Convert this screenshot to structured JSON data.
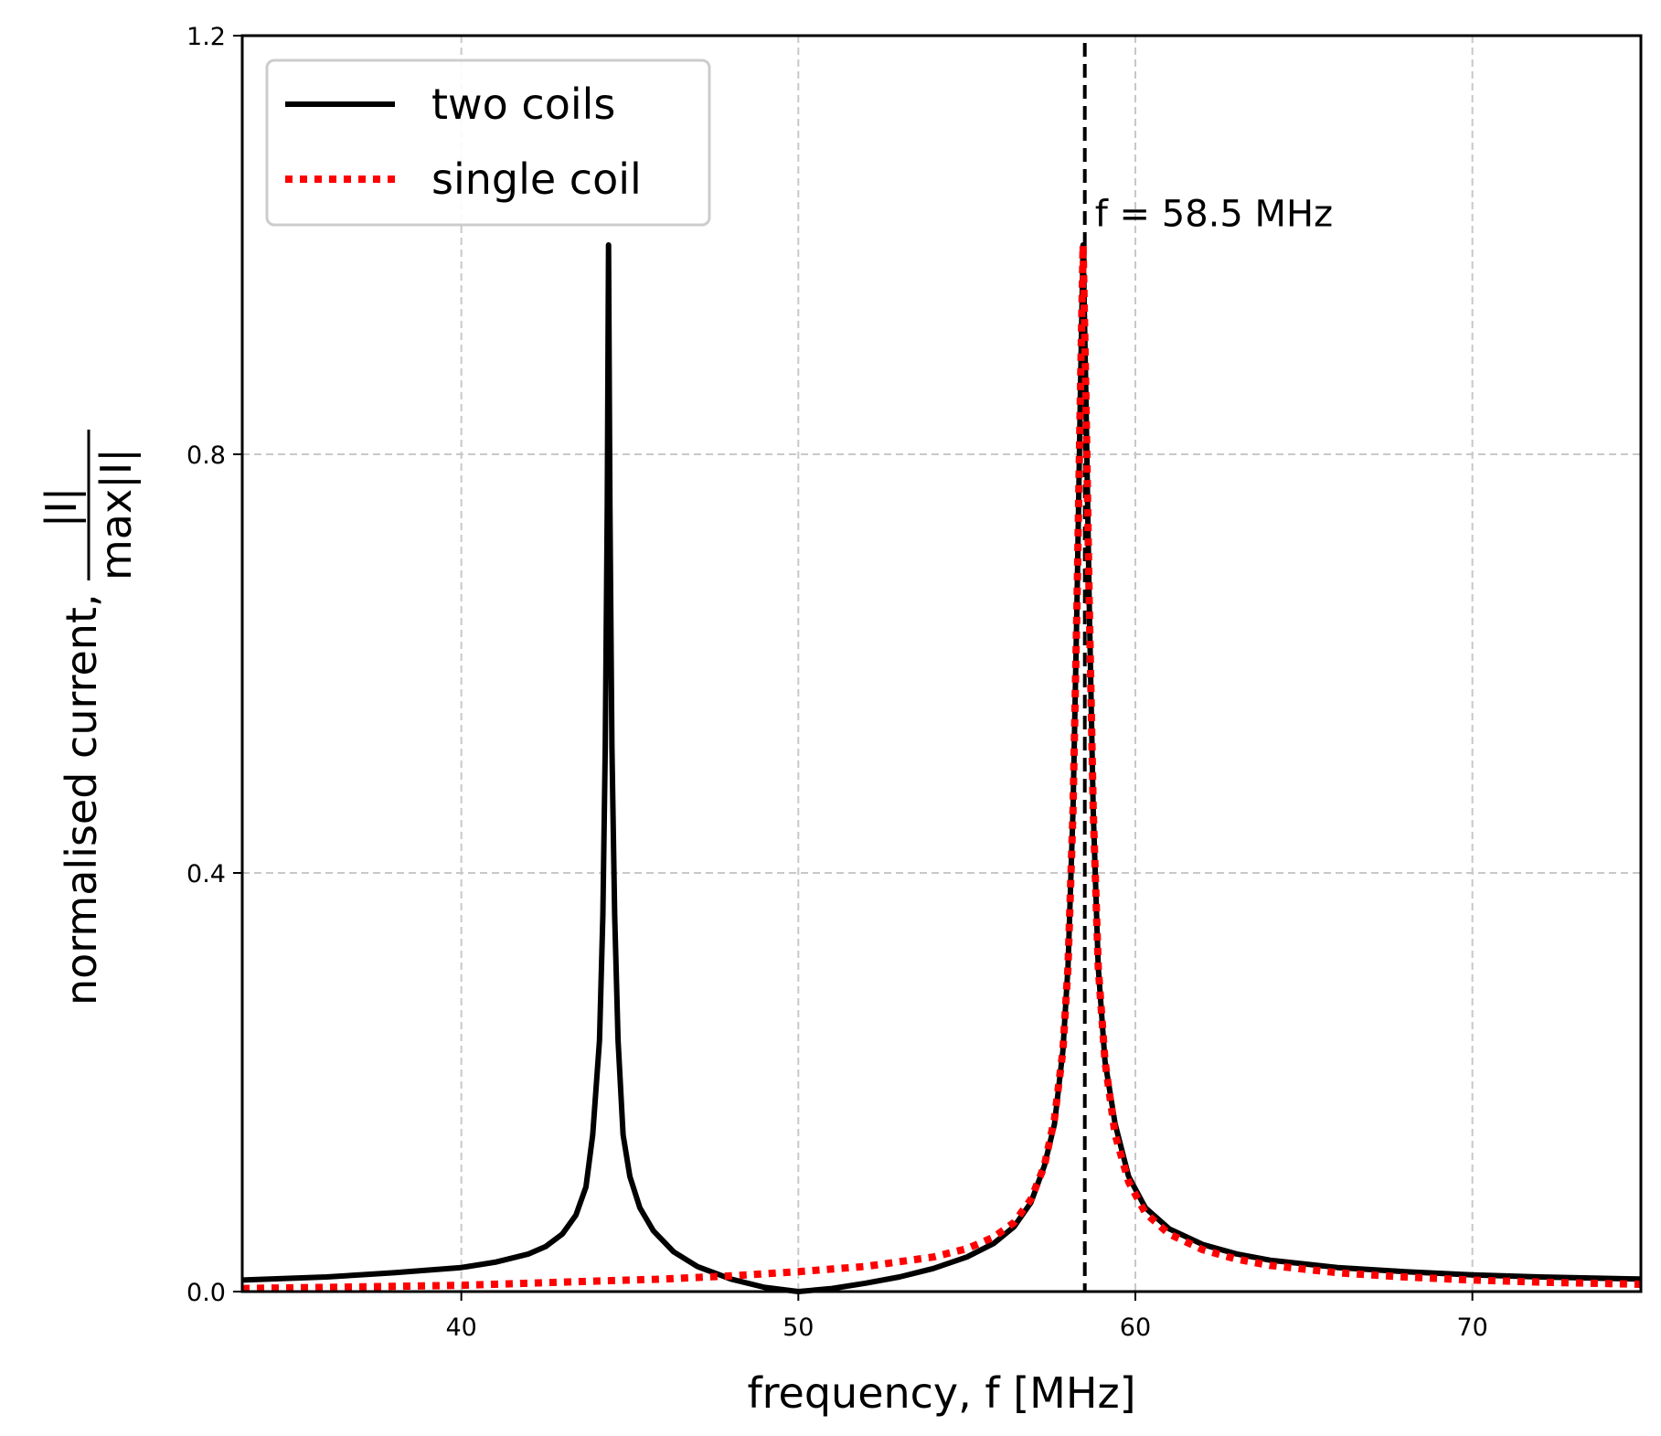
{
  "chart_data": {
    "type": "line",
    "xlabel": "frequency, f [MHz]",
    "ylabel_text": "normalised current, ",
    "ylabel_fraction": {
      "numerator": "|I|",
      "denominator_prefix": "max",
      "denominator_value": "|I|"
    },
    "xlim": [
      33.5,
      75
    ],
    "ylim": [
      0,
      1.2
    ],
    "x_ticks": [
      40,
      50,
      60,
      70
    ],
    "y_ticks": [
      0.0,
      0.4,
      0.8,
      1.2
    ],
    "x_tick_labels": [
      "40",
      "50",
      "60",
      "70"
    ],
    "y_tick_labels": [
      "0.0",
      "0.4",
      "0.8",
      "1.2"
    ],
    "grid": true,
    "legend_position": "top-left",
    "series": [
      {
        "name": "two coils",
        "style": "solid",
        "color": "#000000",
        "points": [
          [
            33.5,
            0.011
          ],
          [
            36,
            0.014
          ],
          [
            38,
            0.018
          ],
          [
            40,
            0.023
          ],
          [
            41,
            0.028
          ],
          [
            42,
            0.036
          ],
          [
            42.5,
            0.043
          ],
          [
            43,
            0.055
          ],
          [
            43.4,
            0.073
          ],
          [
            43.7,
            0.1
          ],
          [
            43.9,
            0.15
          ],
          [
            44.1,
            0.24
          ],
          [
            44.2,
            0.36
          ],
          [
            44.27,
            0.52
          ],
          [
            44.33,
            0.75
          ],
          [
            44.37,
            1.0
          ],
          [
            44.41,
            0.75
          ],
          [
            44.47,
            0.52
          ],
          [
            44.55,
            0.36
          ],
          [
            44.65,
            0.24
          ],
          [
            44.8,
            0.15
          ],
          [
            45,
            0.11
          ],
          [
            45.3,
            0.08
          ],
          [
            45.7,
            0.058
          ],
          [
            46.3,
            0.038
          ],
          [
            47,
            0.024
          ],
          [
            48,
            0.012
          ],
          [
            49,
            0.004
          ],
          [
            50,
            0.0
          ],
          [
            51,
            0.003
          ],
          [
            52,
            0.008
          ],
          [
            53,
            0.014
          ],
          [
            54,
            0.022
          ],
          [
            55,
            0.033
          ],
          [
            55.8,
            0.046
          ],
          [
            56.4,
            0.062
          ],
          [
            56.9,
            0.085
          ],
          [
            57.3,
            0.12
          ],
          [
            57.6,
            0.16
          ],
          [
            57.85,
            0.23
          ],
          [
            58.0,
            0.31
          ],
          [
            58.15,
            0.46
          ],
          [
            58.27,
            0.66
          ],
          [
            58.37,
            0.86
          ],
          [
            58.45,
            1.0
          ],
          [
            58.53,
            0.86
          ],
          [
            58.63,
            0.66
          ],
          [
            58.75,
            0.46
          ],
          [
            58.9,
            0.31
          ],
          [
            59.1,
            0.22
          ],
          [
            59.4,
            0.16
          ],
          [
            59.8,
            0.11
          ],
          [
            60.3,
            0.08
          ],
          [
            61,
            0.06
          ],
          [
            62,
            0.045
          ],
          [
            63,
            0.036
          ],
          [
            64,
            0.03
          ],
          [
            66,
            0.023
          ],
          [
            68,
            0.019
          ],
          [
            70,
            0.016
          ],
          [
            72,
            0.014
          ],
          [
            75,
            0.012
          ]
        ]
      },
      {
        "name": "single coil",
        "style": "dotted",
        "color": "#ff0000",
        "points": [
          [
            33.5,
            0.003
          ],
          [
            36,
            0.004
          ],
          [
            38,
            0.005
          ],
          [
            40,
            0.006
          ],
          [
            42,
            0.008
          ],
          [
            44,
            0.01
          ],
          [
            46,
            0.012
          ],
          [
            48,
            0.015
          ],
          [
            50,
            0.019
          ],
          [
            52,
            0.024
          ],
          [
            54,
            0.033
          ],
          [
            55,
            0.041
          ],
          [
            55.8,
            0.052
          ],
          [
            56.4,
            0.066
          ],
          [
            56.9,
            0.088
          ],
          [
            57.3,
            0.12
          ],
          [
            57.6,
            0.165
          ],
          [
            57.85,
            0.23
          ],
          [
            58.0,
            0.31
          ],
          [
            58.15,
            0.46
          ],
          [
            58.27,
            0.66
          ],
          [
            58.37,
            0.86
          ],
          [
            58.45,
            1.0
          ],
          [
            58.53,
            0.86
          ],
          [
            58.63,
            0.66
          ],
          [
            58.75,
            0.46
          ],
          [
            58.9,
            0.31
          ],
          [
            59.1,
            0.22
          ],
          [
            59.4,
            0.15
          ],
          [
            59.8,
            0.105
          ],
          [
            60.3,
            0.075
          ],
          [
            61,
            0.055
          ],
          [
            62,
            0.04
          ],
          [
            63,
            0.031
          ],
          [
            64,
            0.025
          ],
          [
            66,
            0.018
          ],
          [
            68,
            0.014
          ],
          [
            70,
            0.011
          ],
          [
            72,
            0.009
          ],
          [
            75,
            0.007
          ]
        ]
      }
    ],
    "vline": {
      "x": 58.5,
      "style": "dashed",
      "color": "#000000"
    },
    "annotation": {
      "text": "f = 58.5 MHz",
      "x": 58.8,
      "y": 1.03
    }
  }
}
